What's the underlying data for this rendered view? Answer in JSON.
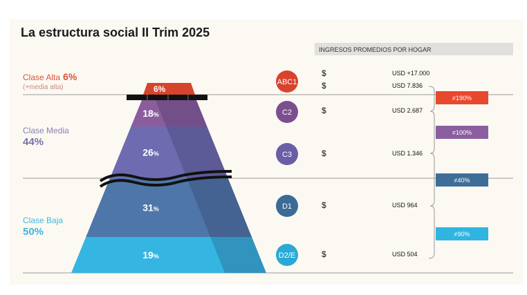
{
  "title": "La estructura social II Trim 2025",
  "income_header": "INGRESOS PROMEDIOS POR HOGAR",
  "classes": [
    {
      "name": "Clase Alta",
      "pct": "6%",
      "note": "(+media alta)",
      "color": "#d9543c"
    },
    {
      "name": "Clase Media",
      "pct": "44%",
      "color": "#8a7fb0"
    },
    {
      "name": "Clase Baja",
      "pct": "50%",
      "color": "#3fb6e0"
    }
  ],
  "levels": [
    {
      "pct": "6",
      "color": "#d5452c"
    },
    {
      "pct": "18",
      "color": "#8b5d9d"
    },
    {
      "pct": "26",
      "color": "#6f6bb0"
    },
    {
      "pct": "31",
      "color": "#4f76a8"
    },
    {
      "pct": "19",
      "color": "#35b5e2"
    }
  ],
  "percent_sign": "%",
  "segments": [
    {
      "label": "ABC1",
      "color": "#d9432e"
    },
    {
      "label": "C2",
      "color": "#7b4f8e"
    },
    {
      "label": "C3",
      "color": "#6a5fa6"
    },
    {
      "label": "D1",
      "color": "#3c6b96"
    },
    {
      "label": "D2/E",
      "color": "#2aa9d6"
    }
  ],
  "currency_symbol": "$",
  "incomes": [
    "USD +17.000",
    "USD 7.836",
    "USD 2.687",
    "USD 1.346",
    "USD 964",
    "USD 504"
  ],
  "gaps": [
    {
      "label": "≠190%",
      "color": "#e8482e"
    },
    {
      "label": "≠100%",
      "color": "#8a5ea0"
    },
    {
      "label": "≠40%",
      "color": "#3e6e98"
    },
    {
      "label": "≠90%",
      "color": "#30b5e0"
    }
  ]
}
